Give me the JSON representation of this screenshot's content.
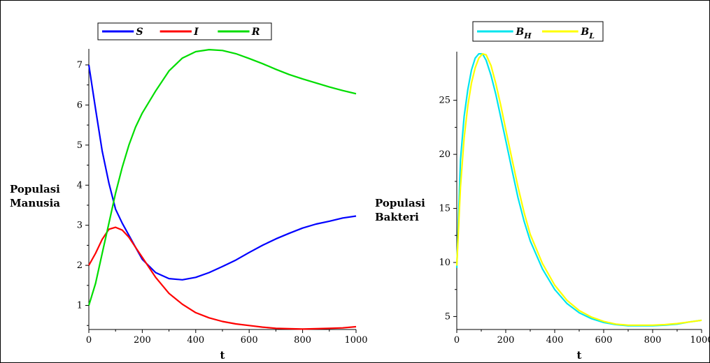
{
  "chart_data": [
    {
      "type": "line",
      "xlabel": "t",
      "ylabel": "Populasi\nManusia",
      "xlim": [
        0,
        1000
      ],
      "ylim": [
        0.4,
        7.4
      ],
      "xticks": [
        0,
        200,
        400,
        600,
        800,
        1000
      ],
      "yticks": [
        1,
        2,
        3,
        4,
        5,
        6,
        7
      ],
      "legend": "top",
      "grid": false,
      "series": [
        {
          "name": "S",
          "color": "#0000ff",
          "x": [
            0,
            25,
            50,
            75,
            100,
            125,
            150,
            175,
            200,
            250,
            300,
            350,
            400,
            450,
            500,
            550,
            600,
            650,
            700,
            750,
            800,
            850,
            900,
            950,
            1000
          ],
          "y": [
            7.0,
            5.9,
            4.85,
            4.05,
            3.4,
            3.05,
            2.75,
            2.45,
            2.15,
            1.82,
            1.67,
            1.64,
            1.7,
            1.82,
            1.97,
            2.13,
            2.32,
            2.5,
            2.66,
            2.8,
            2.93,
            3.03,
            3.1,
            3.18,
            3.23
          ]
        },
        {
          "name": "I",
          "color": "#ff0000",
          "x": [
            0,
            25,
            50,
            75,
            100,
            125,
            150,
            175,
            200,
            250,
            300,
            350,
            400,
            450,
            500,
            550,
            600,
            650,
            700,
            750,
            800,
            850,
            900,
            950,
            1000
          ],
          "y": [
            2.0,
            2.3,
            2.65,
            2.9,
            2.95,
            2.88,
            2.7,
            2.45,
            2.2,
            1.7,
            1.3,
            1.03,
            0.82,
            0.69,
            0.6,
            0.54,
            0.5,
            0.46,
            0.43,
            0.42,
            0.41,
            0.42,
            0.43,
            0.44,
            0.47
          ]
        },
        {
          "name": "R",
          "color": "#00dd00",
          "x": [
            0,
            25,
            50,
            75,
            100,
            125,
            150,
            175,
            200,
            250,
            300,
            350,
            400,
            450,
            500,
            550,
            600,
            650,
            700,
            750,
            800,
            850,
            900,
            950,
            1000
          ],
          "y": [
            1.0,
            1.55,
            2.3,
            3.05,
            3.8,
            4.45,
            5.0,
            5.45,
            5.8,
            6.35,
            6.85,
            7.17,
            7.33,
            7.38,
            7.36,
            7.28,
            7.16,
            7.03,
            6.89,
            6.76,
            6.65,
            6.55,
            6.45,
            6.36,
            6.28
          ]
        }
      ]
    },
    {
      "type": "line",
      "xlabel": "t",
      "ylabel": "Populasi\nBakteri",
      "xlim": [
        0,
        1000
      ],
      "ylim": [
        3.8,
        29.5
      ],
      "xticks": [
        0,
        200,
        400,
        600,
        800,
        1000
      ],
      "yticks": [
        5,
        10,
        15,
        20,
        25
      ],
      "legend": "top",
      "grid": false,
      "series": [
        {
          "name": "B_H",
          "label_main": "B",
          "label_sub": "H",
          "color": "#00e5ee",
          "x": [
            0,
            15,
            30,
            45,
            60,
            75,
            90,
            105,
            120,
            140,
            160,
            180,
            200,
            225,
            250,
            275,
            300,
            350,
            400,
            450,
            500,
            550,
            600,
            650,
            700,
            750,
            800,
            850,
            900,
            950,
            1000
          ],
          "y": [
            9.5,
            19.5,
            23.5,
            26.0,
            27.8,
            28.9,
            29.3,
            29.3,
            28.7,
            27.3,
            25.5,
            23.4,
            21.3,
            18.6,
            16.0,
            13.8,
            12.0,
            9.4,
            7.5,
            6.2,
            5.35,
            4.8,
            4.45,
            4.25,
            4.15,
            4.15,
            4.15,
            4.2,
            4.3,
            4.5,
            4.65
          ]
        },
        {
          "name": "B_L",
          "label_main": "B",
          "label_sub": "L",
          "color": "#ffff00",
          "x": [
            0,
            15,
            30,
            45,
            60,
            75,
            90,
            105,
            120,
            140,
            160,
            180,
            200,
            225,
            250,
            275,
            300,
            350,
            400,
            450,
            500,
            550,
            600,
            650,
            700,
            750,
            800,
            850,
            900,
            950,
            1000
          ],
          "y": [
            9.7,
            17.0,
            21.5,
            24.5,
            26.6,
            28.0,
            28.9,
            29.3,
            29.2,
            28.2,
            26.5,
            24.5,
            22.3,
            19.6,
            17.0,
            14.6,
            12.6,
            9.9,
            7.9,
            6.5,
            5.55,
            4.95,
            4.55,
            4.3,
            4.2,
            4.2,
            4.2,
            4.25,
            4.35,
            4.5,
            4.65
          ]
        }
      ]
    }
  ]
}
